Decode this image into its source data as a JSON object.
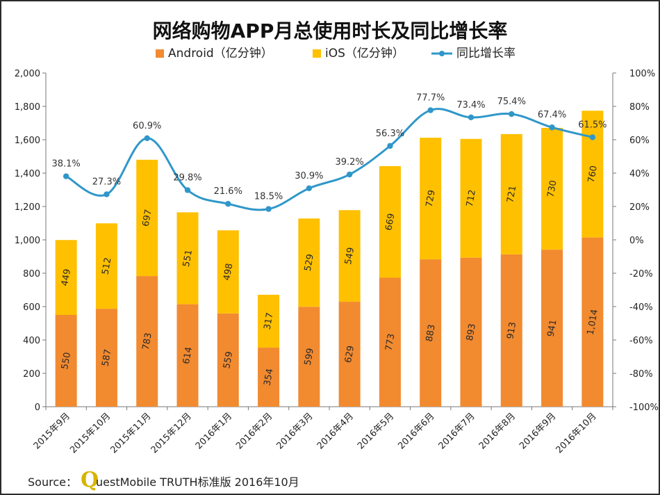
{
  "chart_data": {
    "type": "bar",
    "subtype": "stacked-bar-with-line",
    "title": "网络购物APP月总使用时长及同比增长率",
    "categories": [
      "2015年9月",
      "2015年10月",
      "2015年11月",
      "2015年12月",
      "2016年1月",
      "2016年2月",
      "2016年3月",
      "2016年4月",
      "2016年5月",
      "2016年6月",
      "2016年7月",
      "2016年8月",
      "2016年9月",
      "2016年10月"
    ],
    "series": [
      {
        "name": "Android（亿分钟）",
        "type": "bar",
        "axis": "left",
        "color": "#f28a30",
        "values": [
          550,
          587,
          783,
          614,
          559,
          354,
          599,
          629,
          773,
          883,
          893,
          913,
          941,
          1014
        ],
        "labels": [
          "550",
          "587",
          "783",
          "614",
          "559",
          "354",
          "599",
          "629",
          "773",
          "883",
          "893",
          "913",
          "941",
          "1,014"
        ]
      },
      {
        "name": "iOS（亿分钟）",
        "type": "bar",
        "axis": "left",
        "color": "#ffc000",
        "values": [
          449,
          512,
          697,
          551,
          498,
          317,
          529,
          549,
          669,
          729,
          712,
          721,
          730,
          760
        ],
        "labels": [
          "449",
          "512",
          "697",
          "551",
          "498",
          "317",
          "529",
          "549",
          "669",
          "729",
          "712",
          "721",
          "730",
          "760"
        ]
      },
      {
        "name": "同比增长率",
        "type": "line",
        "axis": "right",
        "color": "#2f97c9",
        "values": [
          38.1,
          27.3,
          60.9,
          29.8,
          21.6,
          18.5,
          30.9,
          39.2,
          56.3,
          77.7,
          73.4,
          75.4,
          67.4,
          61.5
        ],
        "labels": [
          "38.1%",
          "27.3%",
          "60.9%",
          "29.8%",
          "21.6%",
          "18.5%",
          "30.9%",
          "39.2%",
          "56.3%",
          "77.7%",
          "73.4%",
          "75.4%",
          "67.4%",
          "61.5%"
        ]
      }
    ],
    "y_left": {
      "ylim": [
        0,
        2000
      ],
      "ticks": [
        0,
        200,
        400,
        600,
        800,
        1000,
        1200,
        1400,
        1600,
        1800,
        2000
      ],
      "tick_labels": [
        "0",
        "200",
        "400",
        "600",
        "800",
        "1,000",
        "1,200",
        "1,400",
        "1,600",
        "1,800",
        "2,000"
      ]
    },
    "y_right": {
      "ylim": [
        -100,
        100
      ],
      "ticks": [
        -100,
        -80,
        -60,
        -40,
        -20,
        0,
        20,
        40,
        60,
        80,
        100
      ],
      "tick_labels": [
        "-100%",
        "-80%",
        "-60%",
        "-40%",
        "-20%",
        "0%",
        "20%",
        "40%",
        "60%",
        "80%",
        "100%"
      ]
    },
    "legend_position": "top",
    "grid": false
  },
  "source": {
    "prefix": "Source：",
    "logo_letter": "Q",
    "text": "uestMobile TRUTH标准版 2016年10月"
  }
}
